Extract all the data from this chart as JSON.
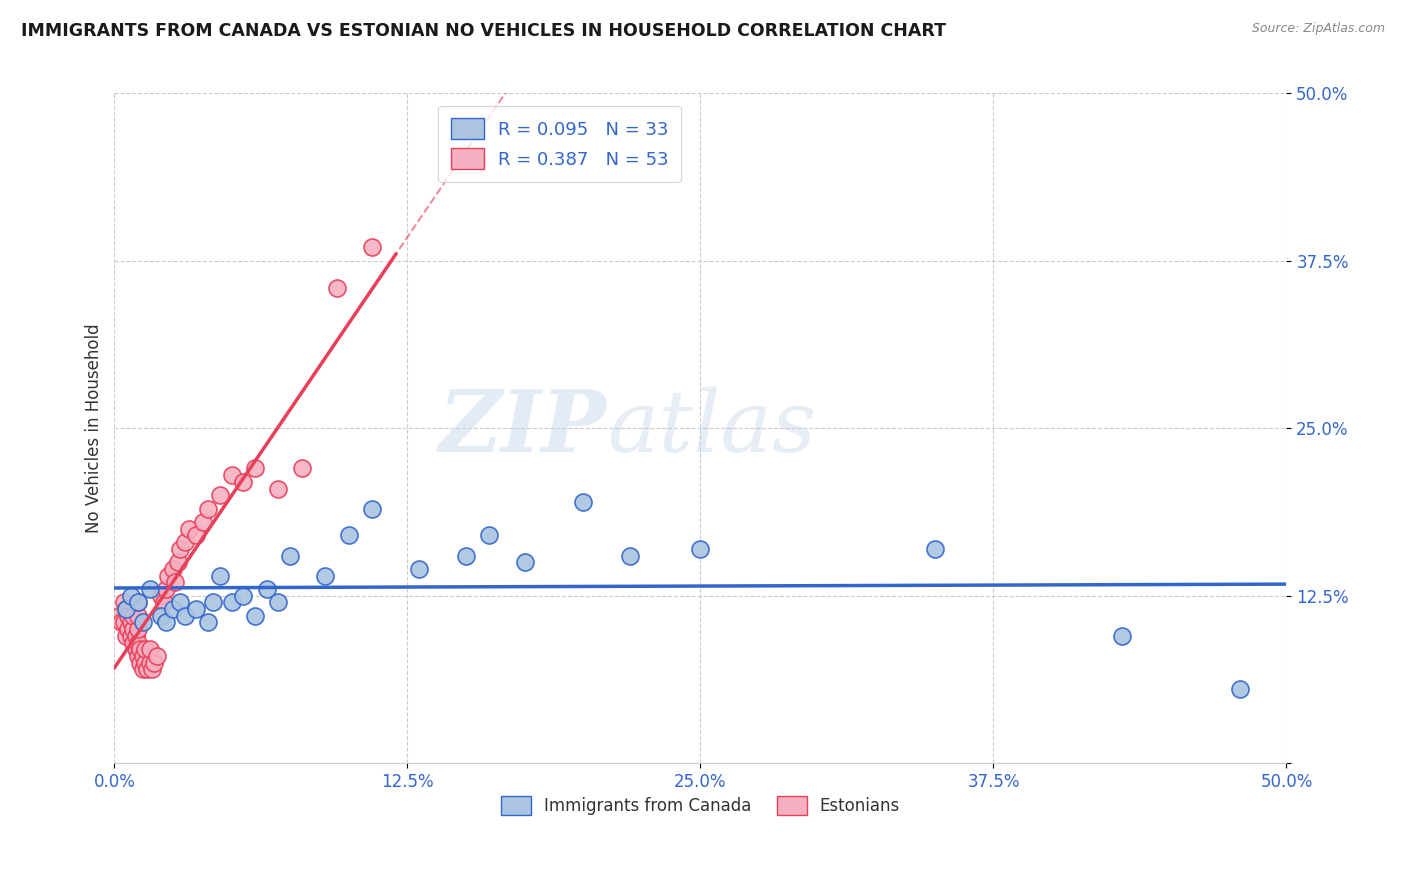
{
  "title": "IMMIGRANTS FROM CANADA VS ESTONIAN NO VEHICLES IN HOUSEHOLD CORRELATION CHART",
  "source": "Source: ZipAtlas.com",
  "ylabel_label": "No Vehicles in Household",
  "legend_label1": "Immigrants from Canada",
  "legend_label2": "Estonians",
  "R1": 0.095,
  "N1": 33,
  "R2": 0.387,
  "N2": 53,
  "color1": "#aac4e2",
  "color2": "#f5afc0",
  "line_color1": "#3366cc",
  "line_color2": "#e8405a",
  "xlim": [
    0,
    0.5
  ],
  "ylim": [
    0,
    0.5
  ],
  "xticks": [
    0.0,
    0.125,
    0.25,
    0.375,
    0.5
  ],
  "yticks": [
    0.0,
    0.125,
    0.25,
    0.375,
    0.5
  ],
  "xticklabels": [
    "0.0%",
    "12.5%",
    "25.0%",
    "37.5%",
    "50.0%"
  ],
  "yticklabels": [
    "",
    "12.5%",
    "25.0%",
    "37.5%",
    "50.0%"
  ],
  "blue_x": [
    0.005,
    0.007,
    0.01,
    0.012,
    0.015,
    0.02,
    0.022,
    0.025,
    0.028,
    0.03,
    0.035,
    0.04,
    0.042,
    0.045,
    0.05,
    0.055,
    0.06,
    0.065,
    0.07,
    0.075,
    0.09,
    0.1,
    0.11,
    0.13,
    0.15,
    0.16,
    0.175,
    0.2,
    0.22,
    0.25,
    0.35,
    0.43,
    0.48
  ],
  "blue_y": [
    0.115,
    0.125,
    0.12,
    0.105,
    0.13,
    0.11,
    0.105,
    0.115,
    0.12,
    0.11,
    0.115,
    0.105,
    0.12,
    0.14,
    0.12,
    0.125,
    0.11,
    0.13,
    0.12,
    0.155,
    0.14,
    0.17,
    0.19,
    0.145,
    0.155,
    0.17,
    0.15,
    0.195,
    0.155,
    0.16,
    0.16,
    0.095,
    0.055
  ],
  "pink_x": [
    0.002,
    0.003,
    0.004,
    0.004,
    0.005,
    0.005,
    0.006,
    0.006,
    0.007,
    0.007,
    0.008,
    0.008,
    0.008,
    0.009,
    0.009,
    0.01,
    0.01,
    0.01,
    0.01,
    0.01,
    0.011,
    0.011,
    0.012,
    0.012,
    0.013,
    0.013,
    0.014,
    0.015,
    0.015,
    0.016,
    0.017,
    0.018,
    0.02,
    0.021,
    0.022,
    0.023,
    0.025,
    0.026,
    0.027,
    0.028,
    0.03,
    0.032,
    0.035,
    0.038,
    0.04,
    0.045,
    0.05,
    0.055,
    0.06,
    0.07,
    0.08,
    0.095,
    0.11
  ],
  "pink_y": [
    0.11,
    0.105,
    0.105,
    0.12,
    0.095,
    0.115,
    0.1,
    0.11,
    0.095,
    0.105,
    0.09,
    0.1,
    0.11,
    0.085,
    0.095,
    0.08,
    0.09,
    0.1,
    0.11,
    0.12,
    0.075,
    0.085,
    0.07,
    0.08,
    0.075,
    0.085,
    0.07,
    0.075,
    0.085,
    0.07,
    0.075,
    0.08,
    0.125,
    0.12,
    0.13,
    0.14,
    0.145,
    0.135,
    0.15,
    0.16,
    0.165,
    0.175,
    0.17,
    0.18,
    0.19,
    0.2,
    0.215,
    0.21,
    0.22,
    0.205,
    0.22,
    0.355,
    0.385
  ],
  "watermark_zip": "ZIP",
  "watermark_atlas": "atlas",
  "bg_color": "#ffffff",
  "grid_color": "#cccccc",
  "tick_color": "#3366cc"
}
